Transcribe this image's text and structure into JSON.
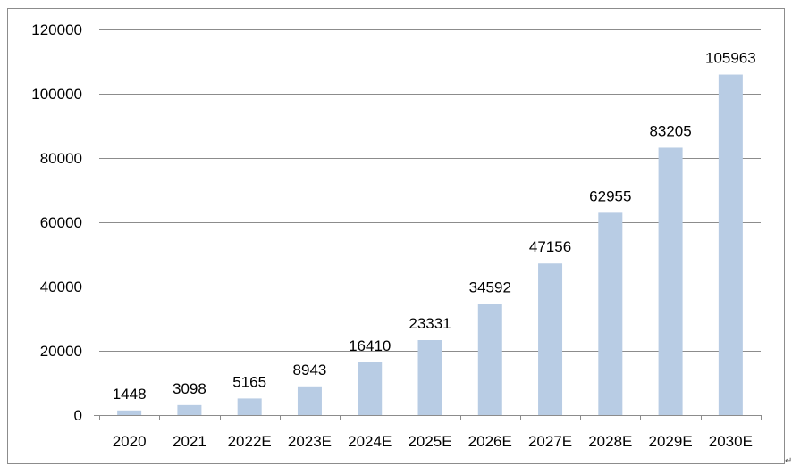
{
  "chart_data": {
    "type": "bar",
    "categories": [
      "2020",
      "2021",
      "2022E",
      "2023E",
      "2024E",
      "2025E",
      "2026E",
      "2027E",
      "2028E",
      "2029E",
      "2030E"
    ],
    "values": [
      1448,
      3098,
      5165,
      8943,
      16410,
      23331,
      34592,
      47156,
      62955,
      83205,
      105963
    ],
    "data_labels": [
      "1448",
      "3098",
      "5165",
      "8943",
      "16410",
      "23331",
      "34592",
      "47156",
      "62955",
      "83205",
      "105963"
    ],
    "y_ticks": [
      0,
      20000,
      40000,
      60000,
      80000,
      100000,
      120000
    ],
    "y_tick_labels": [
      "0",
      "20000",
      "40000",
      "60000",
      "80000",
      "100000",
      "120000"
    ],
    "ylim": [
      0,
      120000
    ],
    "title": "",
    "xlabel": "",
    "ylabel": "",
    "grid": true,
    "legend": "none",
    "bar_color": "#b8cce4",
    "grid_color": "#8c8c8c"
  },
  "page": {
    "return_mark": "↵"
  }
}
